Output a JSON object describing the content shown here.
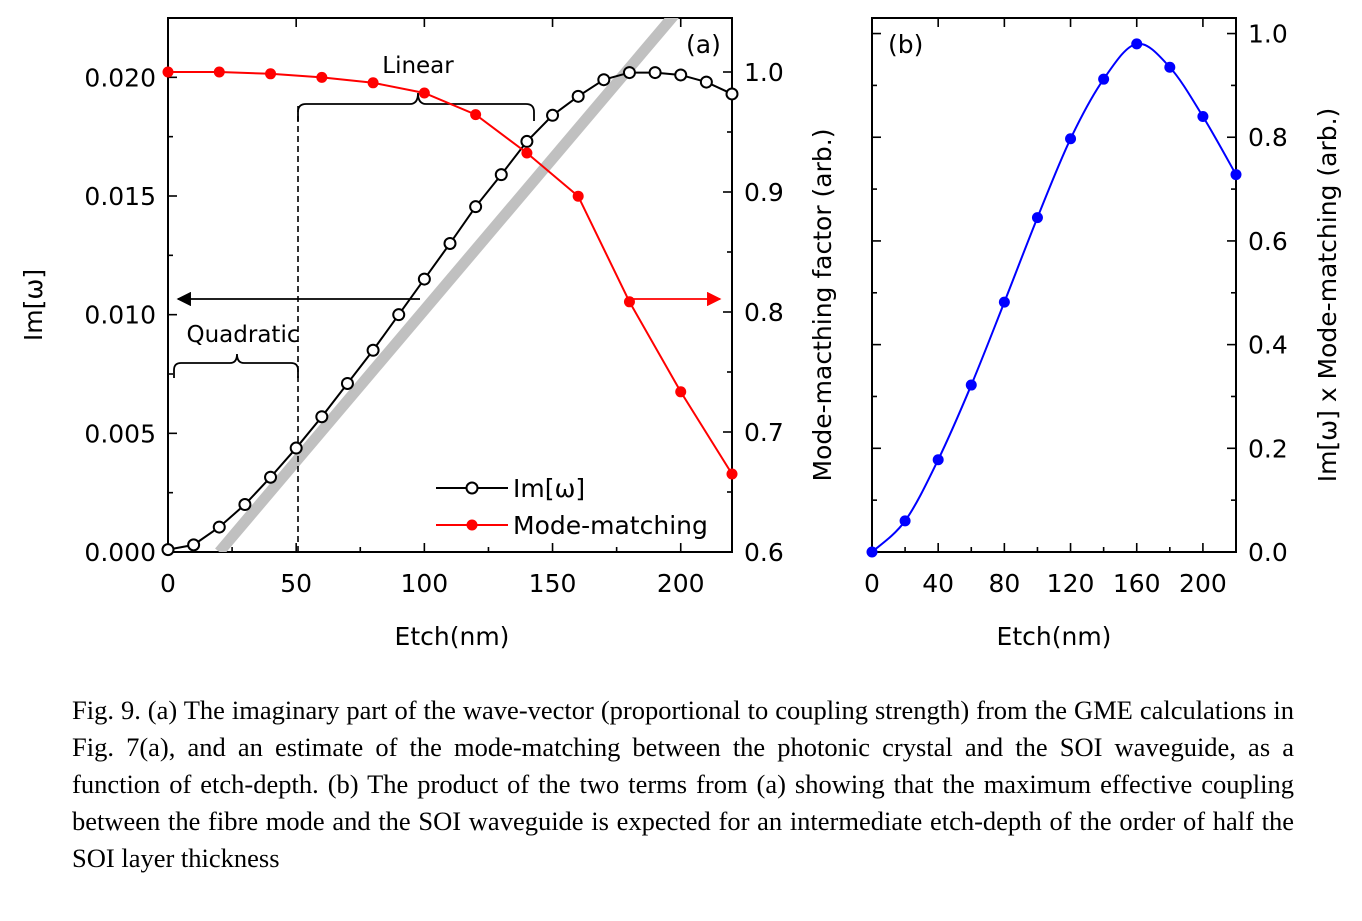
{
  "chart_data": [
    {
      "panel_label": "(a)",
      "type": "line",
      "xlabel": "Etch(nm)",
      "xlim": [
        0,
        220
      ],
      "x_ticks": [
        0,
        50,
        100,
        150,
        200
      ],
      "ylabel_left": "Im[ω]",
      "ylim_left": [
        0,
        0.0225
      ],
      "y_ticks_left": [
        "0.000",
        "0.005",
        "0.010",
        "0.015",
        "0.020"
      ],
      "ylabel_right": "Mode-macthing factor (arb.)",
      "ylim_right": [
        0.6,
        1.045
      ],
      "y_ticks_right": [
        "0.6",
        "0.7",
        "0.8",
        "0.9",
        "1.0"
      ],
      "series": [
        {
          "name": "Im[ω]",
          "axis": "left",
          "marker": "open-circle",
          "color": "#000000",
          "x": [
            0,
            10,
            20,
            30,
            40,
            50,
            60,
            70,
            80,
            90,
            100,
            110,
            120,
            130,
            140,
            150,
            160,
            170,
            180,
            190,
            200,
            210,
            220
          ],
          "y": [
            0.0001,
            0.0003,
            0.00105,
            0.002,
            0.00315,
            0.00438,
            0.0057,
            0.0071,
            0.0085,
            0.01,
            0.0115,
            0.013,
            0.01455,
            0.0159,
            0.0173,
            0.0184,
            0.0192,
            0.0199,
            0.0202,
            0.0202,
            0.0201,
            0.0198,
            0.0193
          ]
        },
        {
          "name": "Mode-matching",
          "axis": "right",
          "marker": "filled-circle",
          "color": "#ff0000",
          "x": [
            0,
            20,
            40,
            60,
            80,
            100,
            120,
            140,
            160,
            180,
            200,
            220
          ],
          "y": [
            1.0,
            1.0,
            0.9985,
            0.9955,
            0.991,
            0.9825,
            0.9645,
            0.9325,
            0.8965,
            0.8085,
            0.7335,
            0.665
          ]
        }
      ],
      "linear_fit": {
        "x": [
          20,
          220
        ],
        "y": [
          0,
          0.0255
        ],
        "color": "#c0c0c0"
      },
      "annotations": {
        "linear": "Linear",
        "quadratic": "Quadratic"
      }
    },
    {
      "panel_label": "(b)",
      "type": "line",
      "xlabel": "Etch(nm)",
      "xlim": [
        0,
        220
      ],
      "x_ticks": [
        0,
        40,
        80,
        120,
        160,
        200
      ],
      "ylabel_right": "Im[ω] x Mode-matching (arb.)",
      "ylim": [
        0,
        1.03
      ],
      "y_ticks_right": [
        "0.0",
        "0.2",
        "0.4",
        "0.6",
        "0.8",
        "1.0"
      ],
      "series": [
        {
          "name": "Im[ω] x Mode-matching",
          "marker": "filled-circle",
          "color": "#0000ff",
          "x": [
            0,
            20,
            40,
            60,
            80,
            100,
            120,
            140,
            160,
            180,
            200,
            220
          ],
          "y": [
            0.0,
            0.06,
            0.178,
            0.322,
            0.482,
            0.645,
            0.797,
            0.912,
            0.98,
            0.935,
            0.84,
            0.728
          ]
        }
      ]
    }
  ],
  "caption": "Fig. 9. (a) The imaginary part of the wave-vector (proportional to coupling strength) from the GME calculations in Fig. 7(a), and an estimate of the mode-matching between the photonic crystal and the SOI waveguide, as a function of etch-depth. (b) The product of the two terms from (a) showing that the maximum effective coupling between the fibre mode and the SOI waveguide is expected for an intermediate etch-depth of the order of half the SOI layer thickness"
}
